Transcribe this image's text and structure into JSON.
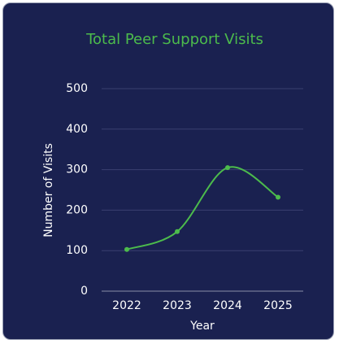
{
  "chart_data": {
    "type": "line",
    "title": "Total Peer Support Visits",
    "x_label": "Year",
    "y_label": "Number of Visits",
    "categories": [
      "2022",
      "2023",
      "2024",
      "2025"
    ],
    "series": [
      {
        "name": "Total Peer Support Visits",
        "color": "#4cbb4c",
        "values": [
          103,
          147,
          305,
          232
        ]
      }
    ],
    "ylim": [
      0,
      500
    ],
    "yticks": [
      0,
      100,
      200,
      300,
      400,
      500
    ],
    "grid": true,
    "smooth": true
  }
}
